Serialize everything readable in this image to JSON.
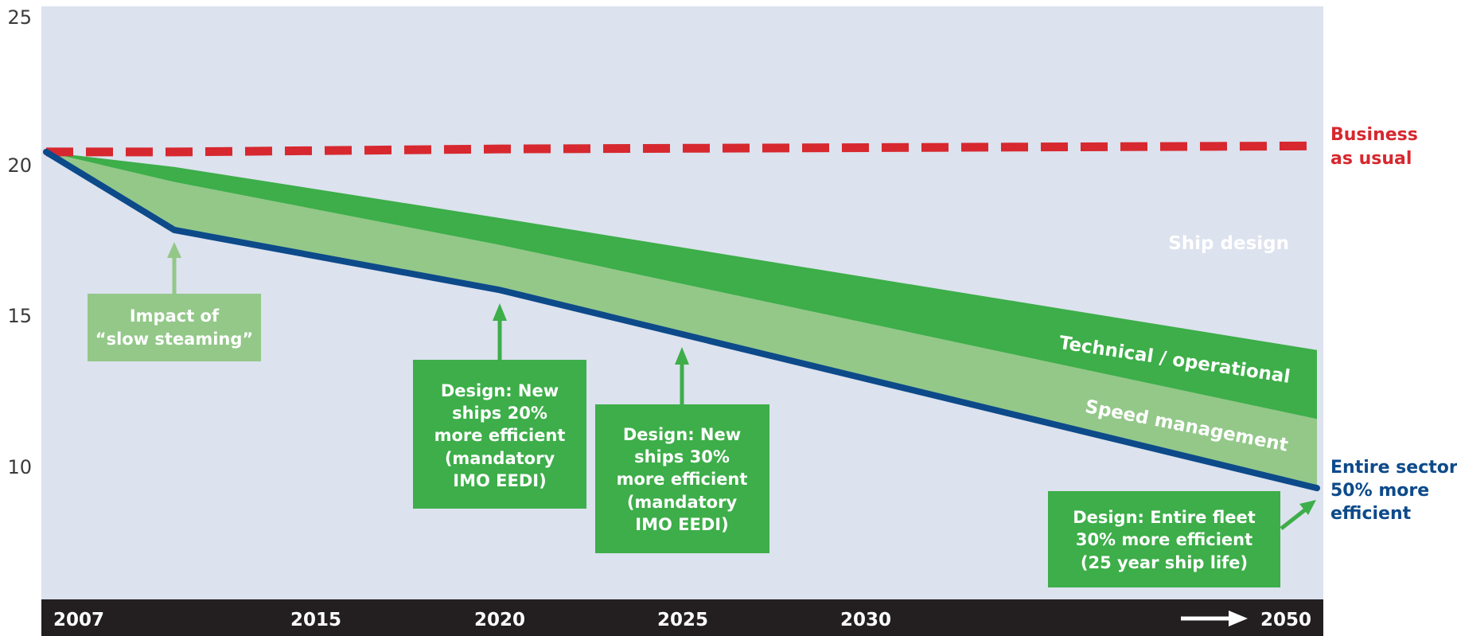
{
  "chart_data": {
    "type": "area",
    "title": "",
    "xlabel": "",
    "ylabel": "",
    "x_ticks": [
      "2007",
      "2015",
      "2020",
      "2025",
      "2030",
      "2050"
    ],
    "y_ticks": [
      "25",
      "20",
      "15",
      "10"
    ],
    "ylim": [
      5,
      25
    ],
    "grid": false,
    "x": [
      "2007",
      "2011",
      "2020",
      "2050"
    ],
    "series": [
      {
        "name": "Business as usual",
        "values": [
          20.4,
          20.4,
          20.5,
          20.6
        ],
        "color": "#d7282f",
        "style": "dashed"
      },
      {
        "name": "Ship design",
        "values": [
          20.4,
          19.9,
          18.2,
          13.8
        ],
        "color": "#3dae49"
      },
      {
        "name": "Technical / operational",
        "values": [
          20.4,
          19.4,
          17.3,
          11.5
        ],
        "color": "#6fb967"
      },
      {
        "name": "Speed management",
        "values": [
          20.4,
          17.8,
          15.8,
          9.2
        ],
        "color": "#93c889"
      },
      {
        "name": "Entire sector 50% more efficient",
        "values": [
          20.4,
          17.8,
          15.8,
          9.2
        ],
        "color": "#0d4a8a"
      }
    ],
    "line_labels": {
      "bau": [
        "Business",
        "as usual"
      ],
      "sector": [
        "Entire sector",
        "50% more",
        "efficient"
      ]
    },
    "band_labels": {
      "ship_design": "Ship design",
      "technical": "Technical / operational",
      "speed": "Speed management"
    },
    "annotations": [
      {
        "id": "slow-steaming",
        "lines": [
          "Impact of",
          "“slow steaming”"
        ],
        "color": "#93c889"
      },
      {
        "id": "eedi-20",
        "lines": [
          "Design: New",
          "ships 20%",
          "more efficient",
          "(mandatory",
          "IMO EEDI)"
        ],
        "color": "#3dae49"
      },
      {
        "id": "eedi-30",
        "lines": [
          "Design: New",
          "ships 30%",
          "more efficient",
          "(mandatory",
          "IMO EEDI)"
        ],
        "color": "#3dae49"
      },
      {
        "id": "fleet-30",
        "lines": [
          "Design: Entire fleet",
          "30% more efficient",
          "(25 year ship life)"
        ],
        "color": "#3dae49"
      }
    ],
    "colors": {
      "plot_background": "#dce2ee",
      "axis_bar": "#231f20"
    }
  }
}
